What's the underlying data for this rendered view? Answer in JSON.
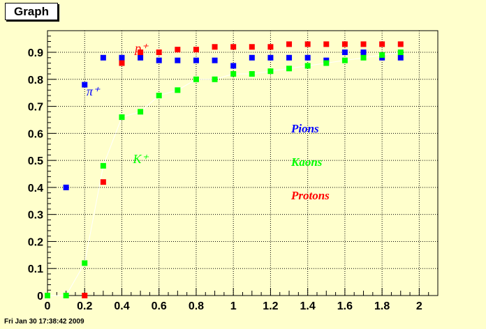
{
  "window": {
    "title": "Graph",
    "timestamp": "Fri Jan 30 17:38:42 2009"
  },
  "chart_data": {
    "type": "scatter",
    "title": "",
    "xlabel": "",
    "ylabel": "",
    "xlim": [
      0,
      2.1
    ],
    "ylim": [
      0,
      0.98
    ],
    "x_ticks": [
      "0",
      "0.2",
      "0.4",
      "0.6",
      "0.8",
      "1",
      "1.2",
      "1.4",
      "1.6",
      "1.8",
      "2"
    ],
    "y_ticks": [
      "0",
      "0.1",
      "0.2",
      "0.3",
      "0.4",
      "0.5",
      "0.6",
      "0.7",
      "0.8",
      "0.9"
    ],
    "grid": true,
    "series": [
      {
        "name": "Pions",
        "color": "#0000ff",
        "points": [
          [
            0,
            0
          ],
          [
            0.1,
            0.4
          ],
          [
            0.2,
            0.78
          ],
          [
            0.3,
            0.88
          ],
          [
            0.4,
            0.88
          ],
          [
            0.5,
            0.88
          ],
          [
            0.6,
            0.87
          ],
          [
            0.7,
            0.87
          ],
          [
            0.8,
            0.87
          ],
          [
            0.9,
            0.87
          ],
          [
            1.0,
            0.85
          ],
          [
            1.1,
            0.88
          ],
          [
            1.2,
            0.88
          ],
          [
            1.3,
            0.88
          ],
          [
            1.4,
            0.88
          ],
          [
            1.5,
            0.87
          ],
          [
            1.6,
            0.9
          ],
          [
            1.7,
            0.9
          ],
          [
            1.8,
            0.88
          ],
          [
            1.9,
            0.88
          ]
        ]
      },
      {
        "name": "Kaons",
        "color": "#00ff00",
        "line": true,
        "points": [
          [
            0,
            0
          ],
          [
            0.1,
            0
          ],
          [
            0.2,
            0.12
          ],
          [
            0.3,
            0.48
          ],
          [
            0.4,
            0.66
          ],
          [
            0.5,
            0.68
          ],
          [
            0.6,
            0.74
          ],
          [
            0.7,
            0.76
          ],
          [
            0.8,
            0.8
          ],
          [
            0.9,
            0.8
          ],
          [
            1.0,
            0.82
          ],
          [
            1.1,
            0.82
          ],
          [
            1.2,
            0.83
          ],
          [
            1.3,
            0.84
          ],
          [
            1.4,
            0.85
          ],
          [
            1.5,
            0.86
          ],
          [
            1.6,
            0.87
          ],
          [
            1.7,
            0.88
          ],
          [
            1.8,
            0.89
          ],
          [
            1.9,
            0.9
          ]
        ]
      },
      {
        "name": "Protons",
        "color": "#ff0000",
        "points": [
          [
            0.2,
            0
          ],
          [
            0.3,
            0.42
          ],
          [
            0.4,
            0.86
          ],
          [
            0.5,
            0.9
          ],
          [
            0.6,
            0.9
          ],
          [
            0.7,
            0.91
          ],
          [
            0.8,
            0.91
          ],
          [
            0.9,
            0.92
          ],
          [
            1.0,
            0.92
          ],
          [
            1.1,
            0.92
          ],
          [
            1.2,
            0.92
          ],
          [
            1.3,
            0.93
          ],
          [
            1.4,
            0.93
          ],
          [
            1.5,
            0.93
          ],
          [
            1.6,
            0.93
          ],
          [
            1.7,
            0.93
          ],
          [
            1.8,
            0.93
          ],
          [
            1.9,
            0.93
          ]
        ]
      }
    ],
    "annotations": [
      {
        "text": "π⁺",
        "color": "#0000ff",
        "x": 0.21,
        "y": 0.74
      },
      {
        "text": "K⁺",
        "color": "#00ff00",
        "x": 0.46,
        "y": 0.49
      },
      {
        "text": "p⁺",
        "color": "#ff0000",
        "x": 0.47,
        "y": 0.9
      }
    ],
    "legend": [
      {
        "label": "Pions",
        "color": "#0000ff"
      },
      {
        "label": "Kaons",
        "color": "#00ff00"
      },
      {
        "label": "Protons",
        "color": "#ff0000"
      }
    ]
  }
}
